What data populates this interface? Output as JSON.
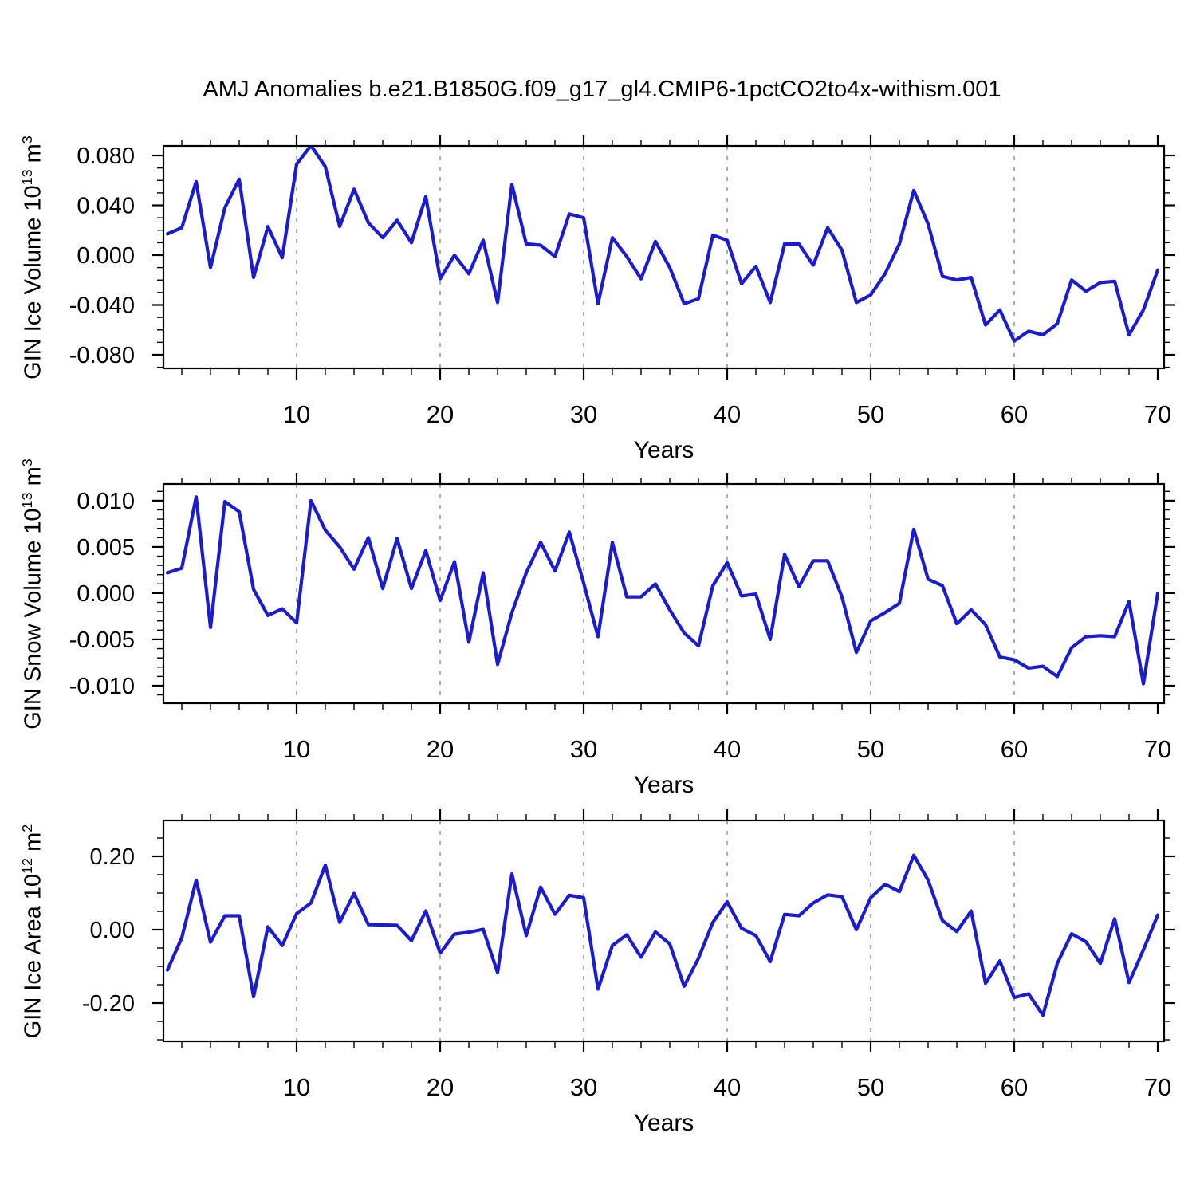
{
  "title": "AMJ Anomalies b.e21.B1850G.f09_g17_gl4.CMIP6-1pctCO2to4x-withism.001",
  "background_color": "#ffffff",
  "line_color": "#1b1bd0",
  "axis_color": "#000000",
  "gridline_color": "#8a8a8a",
  "x_axis": {
    "label": "Years",
    "major_ticks": [
      10,
      20,
      30,
      40,
      50,
      60,
      70
    ],
    "minor_tick_step": 2,
    "gridlines": [
      10,
      20,
      30,
      40,
      50,
      60
    ],
    "year_start": 1,
    "year_end": 70
  },
  "chart_data": [
    {
      "type": "line",
      "name": "gin-ice-volume",
      "ylabel_text": "GIN Ice Volume 10",
      "ylabel_exp": "13",
      "ylabel_unit": " m",
      "ylabel_unit_exp": "3",
      "ylim": [
        -0.0909,
        0.0877
      ],
      "minor_step": 0.01,
      "yticks": [
        {
          "v": 0.08,
          "label": "0.080"
        },
        {
          "v": 0.04,
          "label": "0.040"
        },
        {
          "v": 0.0,
          "label": "0.000"
        },
        {
          "v": -0.04,
          "label": "-0.040"
        },
        {
          "v": -0.08,
          "label": "-0.080"
        }
      ],
      "year_start": 1,
      "values": [
        0.017,
        0.022,
        0.059,
        -0.01,
        0.038,
        0.061,
        -0.018,
        0.023,
        -0.002,
        0.073,
        0.088,
        0.071,
        0.023,
        0.053,
        0.026,
        0.014,
        0.028,
        0.01,
        0.047,
        -0.019,
        0.0,
        -0.015,
        0.012,
        -0.038,
        0.057,
        0.009,
        0.008,
        -0.001,
        0.033,
        0.03,
        -0.039,
        0.014,
        -0.001,
        -0.019,
        0.011,
        -0.01,
        -0.039,
        -0.035,
        0.016,
        0.012,
        -0.023,
        -0.009,
        -0.038,
        0.009,
        0.009,
        -0.008,
        0.022,
        0.004,
        -0.038,
        -0.032,
        -0.015,
        0.009,
        0.052,
        0.025,
        -0.017,
        -0.02,
        -0.018,
        -0.056,
        -0.044,
        -0.069,
        -0.061,
        -0.064,
        -0.055,
        -0.02,
        -0.029,
        -0.022,
        -0.021,
        -0.064,
        -0.044,
        -0.012
      ]
    },
    {
      "type": "line",
      "name": "gin-snow-volume",
      "ylabel_text": "GIN Snow Volume 10",
      "ylabel_exp": "13",
      "ylabel_unit": " m",
      "ylabel_unit_exp": "3",
      "ylim": [
        -0.0119,
        0.0118
      ],
      "minor_step": 0.001,
      "yticks": [
        {
          "v": 0.01,
          "label": "0.010"
        },
        {
          "v": 0.005,
          "label": "0.005"
        },
        {
          "v": 0.0,
          "label": "0.000"
        },
        {
          "v": -0.005,
          "label": "-0.005"
        },
        {
          "v": -0.01,
          "label": "-0.010"
        }
      ],
      "year_start": 1,
      "values": [
        0.0022,
        0.0027,
        0.0104,
        -0.0037,
        0.0099,
        0.0088,
        0.0004,
        -0.0024,
        -0.0017,
        -0.0032,
        0.01,
        0.0068,
        0.005,
        0.0026,
        0.006,
        0.0005,
        0.0059,
        0.0005,
        0.0046,
        -0.0008,
        0.0034,
        -0.0053,
        0.0022,
        -0.0077,
        -0.0021,
        0.0022,
        0.0055,
        0.0024,
        0.0066,
        0.0011,
        -0.0047,
        0.0055,
        -0.0004,
        -0.0004,
        0.001,
        -0.0018,
        -0.0043,
        -0.0057,
        0.0008,
        0.0033,
        -0.0003,
        -0.0001,
        -0.005,
        0.0042,
        0.0007,
        0.0035,
        0.0035,
        -0.0004,
        -0.0064,
        -0.003,
        -0.0021,
        -0.0011,
        0.0069,
        0.0015,
        0.0008,
        -0.0033,
        -0.0018,
        -0.0034,
        -0.0069,
        -0.0072,
        -0.0081,
        -0.0079,
        -0.009,
        -0.0059,
        -0.0047,
        -0.0046,
        -0.0047,
        -0.0009,
        -0.0098,
        0.0
      ]
    },
    {
      "type": "line",
      "name": "gin-ice-area",
      "ylabel_text": "GIN Ice Area 10",
      "ylabel_exp": "12",
      "ylabel_unit": " m",
      "ylabel_unit_exp": "2",
      "ylim": [
        -0.3043,
        0.2978
      ],
      "minor_step": 0.05,
      "yticks": [
        {
          "v": 0.2,
          "label": "0.20"
        },
        {
          "v": 0.0,
          "label": "0.00"
        },
        {
          "v": -0.2,
          "label": "-0.20"
        }
      ],
      "year_start": 1,
      "values": [
        -0.11,
        -0.022,
        0.135,
        -0.034,
        0.038,
        0.038,
        -0.183,
        0.008,
        -0.043,
        0.044,
        0.073,
        0.176,
        0.02,
        0.099,
        0.014,
        0.013,
        0.012,
        -0.03,
        0.051,
        -0.064,
        -0.012,
        -0.007,
        0.001,
        -0.117,
        0.152,
        -0.016,
        0.116,
        0.042,
        0.094,
        0.087,
        -0.162,
        -0.043,
        -0.014,
        -0.075,
        -0.006,
        -0.039,
        -0.154,
        -0.078,
        0.02,
        0.076,
        0.004,
        -0.016,
        -0.087,
        0.042,
        0.038,
        0.073,
        0.095,
        0.09,
        0.0,
        0.087,
        0.124,
        0.104,
        0.203,
        0.135,
        0.025,
        -0.005,
        0.051,
        -0.146,
        -0.085,
        -0.185,
        -0.175,
        -0.233,
        -0.092,
        -0.011,
        -0.033,
        -0.092,
        0.03,
        -0.144,
        -0.055,
        0.04
      ]
    }
  ]
}
